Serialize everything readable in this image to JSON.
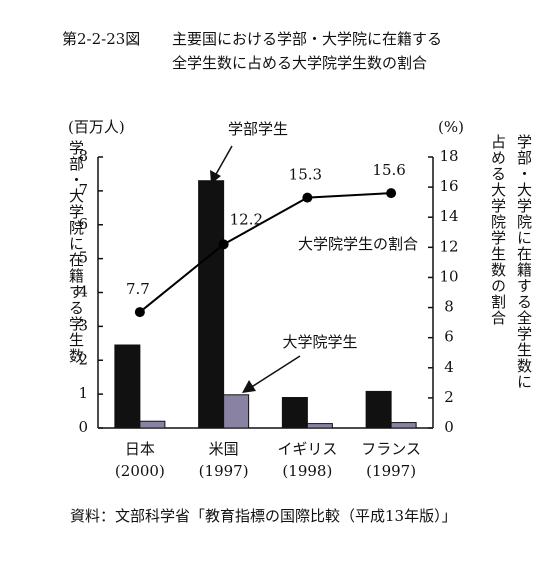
{
  "chart_data": {
    "type": "bar-line",
    "figure_number": "第2-2-23図",
    "title": [
      "主要国における学部・大学院に在籍する",
      "全学生数に占める大学院学生数の割合"
    ],
    "y_unit": "(百万人)",
    "y2_unit": "(%)",
    "y_label": "学部・大学院に在籍する学生数",
    "y2_label": [
      "学部・大学院に在籍する全学生数に",
      "占める大学院学生数の割合"
    ],
    "categories": [
      "日本",
      "米国",
      "イギリス",
      "フランス"
    ],
    "category_years": [
      "(2000)",
      "(1997)",
      "(1998)",
      "(1997)"
    ],
    "series": [
      {
        "name": "学部学生",
        "type": "bar",
        "color": "#111111",
        "values": [
          2.45,
          7.3,
          0.9,
          1.08
        ]
      },
      {
        "name": "大学院学生",
        "type": "bar",
        "color": "#8a82a2",
        "values": [
          0.2,
          0.98,
          0.13,
          0.16
        ]
      },
      {
        "name": "大学院学生の割合",
        "type": "line",
        "axis": "y2",
        "color": "#000000",
        "values": [
          7.7,
          12.2,
          15.3,
          15.6
        ]
      }
    ],
    "ylim": [
      0,
      8
    ],
    "yticks": [
      0,
      1,
      2,
      3,
      4,
      5,
      6,
      7,
      8
    ],
    "y2lim": [
      0,
      18
    ],
    "y2ticks": [
      0,
      2,
      4,
      6,
      8,
      10,
      12,
      14,
      16,
      18
    ],
    "grid": false,
    "source": "資料：文部科学省「教育指標の国際比較（平成13年版）」"
  }
}
